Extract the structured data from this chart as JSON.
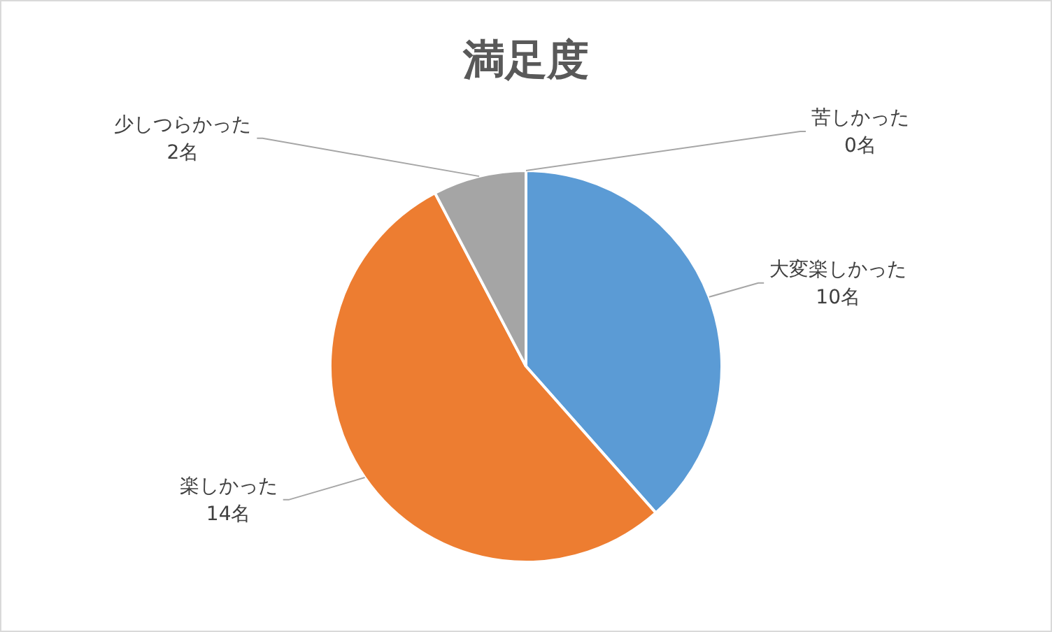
{
  "chart_data": {
    "type": "pie",
    "title": "満足度",
    "categories": [
      "大変楽しかった",
      "楽しかった",
      "少しつらかった",
      "苦しかった"
    ],
    "values": [
      10,
      14,
      2,
      0
    ],
    "value_labels": [
      "10名",
      "14名",
      "2名",
      "0名"
    ],
    "colors": [
      "#5b9bd5",
      "#ed7d31",
      "#a5a5a5",
      "#ffc000"
    ],
    "legend": false
  }
}
